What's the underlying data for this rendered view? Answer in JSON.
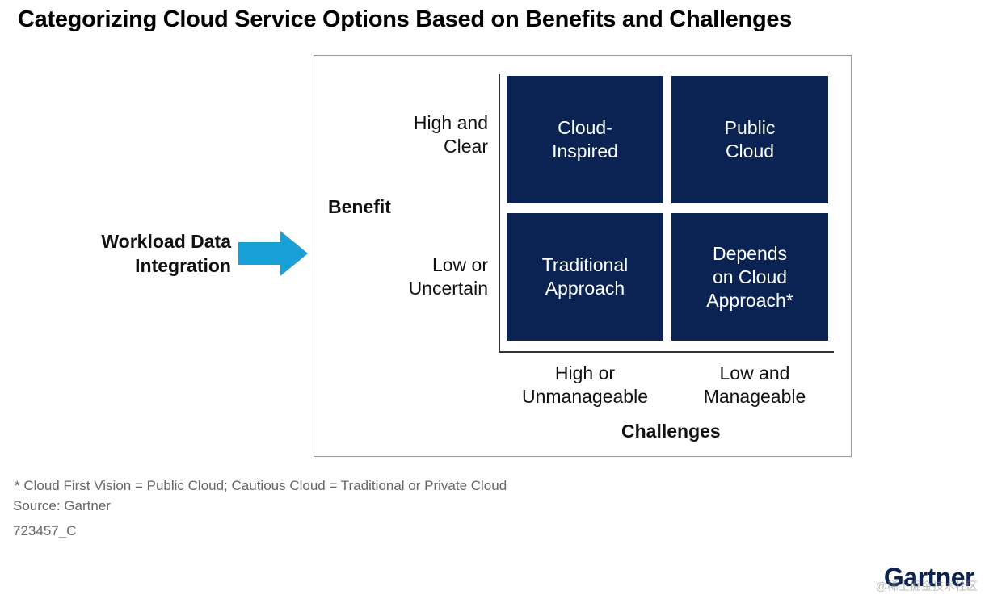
{
  "title": "Categorizing Cloud Service Options Based on Benefits and Challenges",
  "input_label": "Workload Data\nIntegration",
  "y_axis": {
    "title": "Benefit",
    "high": "High and\nClear",
    "low": "Low or\nUncertain"
  },
  "x_axis": {
    "title": "Challenges",
    "left": "High or\nUnmanageable",
    "right": "Low and\nManageable"
  },
  "quadrants": {
    "top_left": "Cloud-\nInspired",
    "top_right": "Public\nCloud",
    "bottom_left": "Traditional\nApproach",
    "bottom_right": "Depends\non Cloud\nApproach*"
  },
  "footnote": "* Cloud First Vision = Public Cloud; Cautious Cloud = Traditional or Private Cloud",
  "source": "Source: Gartner",
  "figure_id": "723457_C",
  "logo_text": "Gartner",
  "watermark": "@稀土掘金技术社区",
  "colors": {
    "quadrant_fill": "#0b2353",
    "arrow": "#1aa0d8"
  }
}
